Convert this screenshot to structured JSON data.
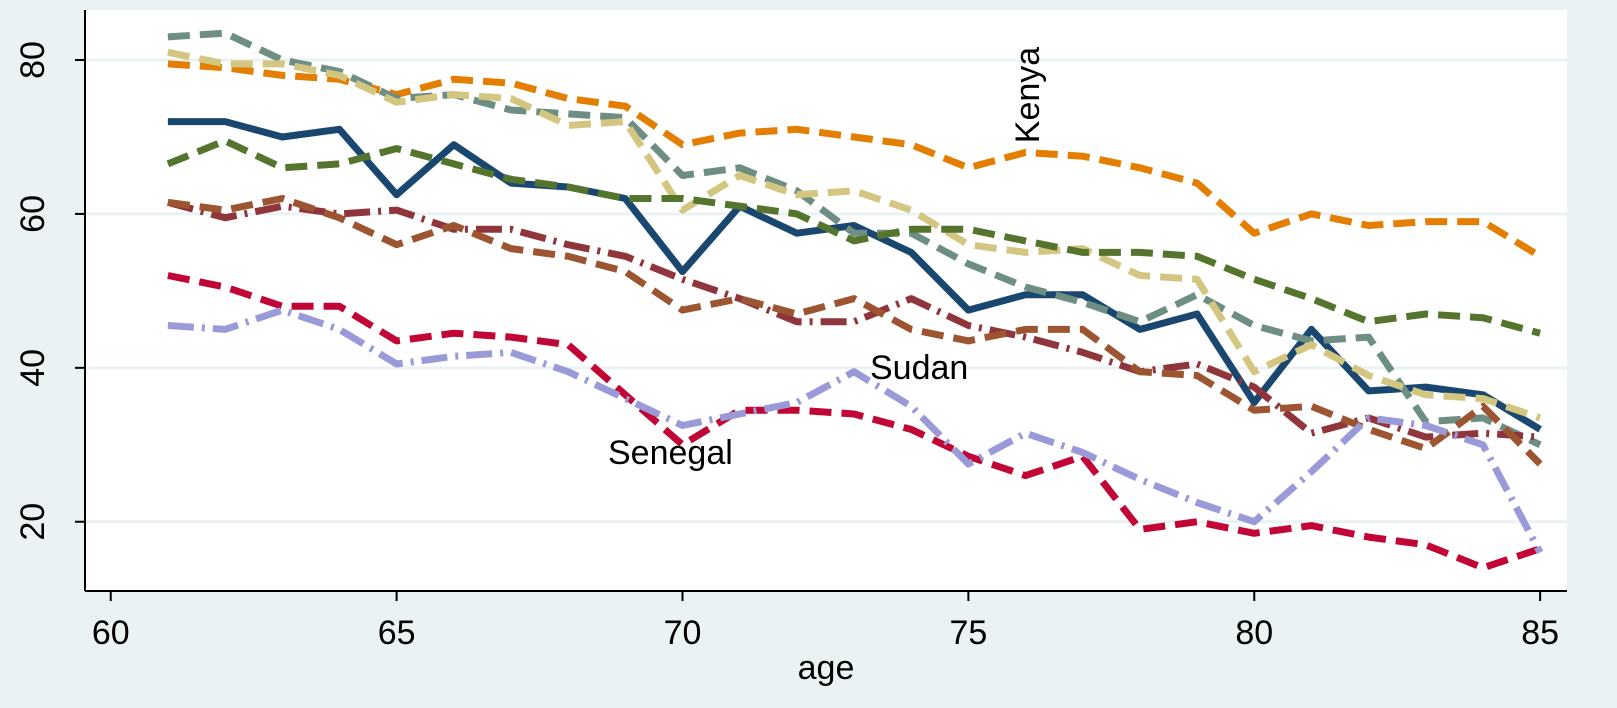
{
  "chart_data": {
    "type": "line",
    "x_label": "age",
    "x": [
      61,
      62,
      63,
      64,
      65,
      66,
      67,
      68,
      69,
      70,
      71,
      72,
      73,
      74,
      75,
      76,
      77,
      78,
      79,
      80,
      81,
      82,
      83,
      84,
      85
    ],
    "xlim": [
      59.55,
      85.47
    ],
    "xticks": [
      60,
      65,
      70,
      75,
      80,
      85
    ],
    "ylim": [
      11,
      86.5
    ],
    "yticks": [
      20,
      40,
      60,
      80
    ],
    "grid": true,
    "annotations": [
      "Kenya",
      "Sudan",
      "Senegal"
    ],
    "series": [
      {
        "color": "#1a476f",
        "dash": "solid",
        "values": [
          72,
          72,
          70,
          71,
          62.5,
          69,
          64,
          63.5,
          62,
          52.5,
          61,
          57.5,
          58.5,
          55,
          47.5,
          49.5,
          49.5,
          45,
          47,
          35.5,
          45,
          37,
          37.5,
          36.5,
          32
        ]
      },
      {
        "color": "#e37e00",
        "dash": "dash",
        "values": [
          79.5,
          79,
          78,
          77.5,
          75.5,
          77.5,
          77,
          75,
          74,
          69,
          70.5,
          71,
          70,
          69,
          66,
          68,
          67.5,
          66,
          64,
          57.5,
          60,
          58.5,
          59,
          59,
          54.5
        ]
      },
      {
        "color": "#6e8e84",
        "dash": "dash",
        "values": [
          83,
          83.5,
          80,
          78.5,
          75,
          75.5,
          73.5,
          73,
          72.5,
          65,
          66,
          63,
          57.5,
          57.5,
          53.5,
          50.5,
          48.5,
          46,
          49.5,
          45.5,
          43.5,
          44,
          33,
          33.5,
          30
        ]
      },
      {
        "color": "#d2c680",
        "dash": "dash",
        "values": [
          81,
          79.5,
          79.5,
          78,
          74.5,
          75.5,
          75,
          71.5,
          72,
          60.5,
          65,
          62.5,
          63,
          60.5,
          56,
          55,
          55.5,
          52,
          51.5,
          39.5,
          43,
          39,
          36.5,
          36,
          33.5
        ]
      },
      {
        "color": "#55752f",
        "dash": "dash",
        "values": [
          66.5,
          69.5,
          66,
          66.5,
          68.5,
          66.5,
          64.5,
          63.5,
          62,
          62,
          61,
          60,
          56.5,
          58,
          58,
          56.5,
          55,
          55,
          54.5,
          51.5,
          49,
          46,
          47,
          46.5,
          44.5
        ]
      },
      {
        "color": "#90353b",
        "dash": "dashdot",
        "values": [
          61.5,
          59.5,
          61,
          60,
          60.5,
          58,
          58,
          56,
          54.5,
          51.5,
          49,
          46,
          46,
          49,
          45.5,
          44,
          42,
          39.5,
          40.5,
          37.5,
          31.5,
          33.5,
          31,
          31.5,
          31
        ]
      },
      {
        "color": "#9c5530",
        "dash": "dash",
        "values": [
          61.5,
          60.5,
          62,
          59.5,
          56,
          58.5,
          55.5,
          54.5,
          52.5,
          47.5,
          49,
          47,
          49,
          45,
          43.5,
          45,
          45,
          39.5,
          39,
          34.5,
          35,
          32,
          29.5,
          35,
          27.5
        ]
      },
      {
        "color": "#c10534",
        "dash": "dash",
        "values": [
          52,
          50.5,
          48,
          48,
          43.5,
          44.5,
          44,
          43,
          36.5,
          30,
          34.5,
          34.5,
          34,
          32,
          28.5,
          26,
          28.5,
          19,
          20,
          18.5,
          19.5,
          18,
          17,
          14,
          16.5
        ]
      },
      {
        "color": "#9a9ad8",
        "dash": "dashdot",
        "values": [
          45.5,
          45,
          47.5,
          45,
          40.5,
          41.5,
          42,
          39.5,
          36,
          32.5,
          34,
          35.5,
          39.5,
          35,
          27.5,
          31.5,
          29,
          25.5,
          22.5,
          20,
          26.5,
          33.5,
          32.5,
          30,
          16
        ]
      }
    ]
  }
}
